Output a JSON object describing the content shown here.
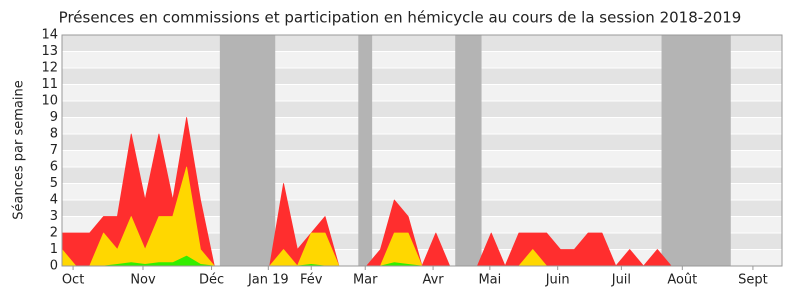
{
  "chart_data": {
    "type": "area",
    "title": "Présences en commissions et participation en hémicycle au cours de la session 2018-2019",
    "y_label": "Séances par semaine",
    "x": [
      0,
      1,
      2,
      3,
      4,
      5,
      6,
      7,
      8,
      9,
      10,
      11,
      12,
      13,
      14,
      15,
      16,
      17,
      18,
      19,
      20,
      21,
      22,
      23,
      24,
      25,
      26,
      27,
      28,
      29,
      30,
      31,
      32,
      33,
      34,
      35,
      36,
      37,
      38,
      39,
      40,
      41,
      42,
      43,
      44,
      45,
      46,
      47,
      48,
      49,
      50,
      51,
      52
    ],
    "series": [
      {
        "color": "#ff2e2e",
        "values": [
          2,
          2,
          2,
          3,
          3,
          8,
          4,
          8,
          4,
          9,
          4,
          0,
          0,
          0,
          0,
          0,
          5,
          1,
          2,
          3,
          0,
          0,
          0,
          1,
          4,
          3,
          0,
          2,
          0,
          0,
          0,
          2,
          0,
          2,
          2,
          2,
          1,
          1,
          2,
          2,
          0,
          1,
          0,
          1,
          0,
          0,
          0,
          0,
          0,
          0,
          0,
          0,
          0
        ]
      },
      {
        "color": "#ffd700",
        "values": [
          1,
          0,
          0,
          2,
          1,
          3,
          1,
          3,
          3,
          6,
          1,
          0,
          0,
          0,
          0,
          0,
          1,
          0,
          2,
          2,
          0,
          0,
          0,
          0,
          2,
          2,
          0,
          0,
          0,
          0,
          0,
          0,
          0,
          0,
          1,
          0,
          0,
          0,
          0,
          0,
          0,
          0,
          0,
          0,
          0,
          0,
          0,
          0,
          0,
          0,
          0,
          0,
          0
        ]
      },
      {
        "color": "#33ee00",
        "values": [
          0,
          0,
          0,
          0,
          0.1,
          0.2,
          0.1,
          0.2,
          0.2,
          0.6,
          0.1,
          0,
          0,
          0,
          0,
          0,
          0,
          0,
          0.1,
          0,
          0,
          0,
          0,
          0,
          0.2,
          0.1,
          0,
          0,
          0,
          0,
          0,
          0,
          0,
          0,
          0,
          0,
          0,
          0,
          0,
          0,
          0,
          0,
          0,
          0,
          0,
          0,
          0,
          0,
          0,
          0,
          0,
          0,
          0
        ]
      }
    ],
    "shaded": [
      [
        11.4,
        15.4
      ],
      [
        21.4,
        22.4
      ],
      [
        28.4,
        30.3
      ],
      [
        43.3,
        48.3
      ]
    ],
    "shaded_color": "#b4b4b4",
    "xlim": [
      0,
      52
    ],
    "xticks": [
      {
        "value": 0.8,
        "label": "Oct"
      },
      {
        "value": 5.85,
        "label": "Nov"
      },
      {
        "value": 10.8,
        "label": "Déc"
      },
      {
        "value": 14.9,
        "label": "Jan 19"
      },
      {
        "value": 18,
        "label": "Fév"
      },
      {
        "value": 21.9,
        "label": "Mar"
      },
      {
        "value": 26.8,
        "label": "Avr"
      },
      {
        "value": 30.9,
        "label": "Mai"
      },
      {
        "value": 35.8,
        "label": "Juin"
      },
      {
        "value": 40.4,
        "label": "Juil"
      },
      {
        "value": 44.8,
        "label": "Août"
      },
      {
        "value": 49.9,
        "label": "Sept"
      }
    ],
    "ylim": [
      0,
      14
    ],
    "yticks": [
      0,
      1,
      2,
      3,
      4,
      5,
      6,
      7,
      8,
      9,
      10,
      11,
      12,
      13,
      14
    ],
    "grid": true
  }
}
